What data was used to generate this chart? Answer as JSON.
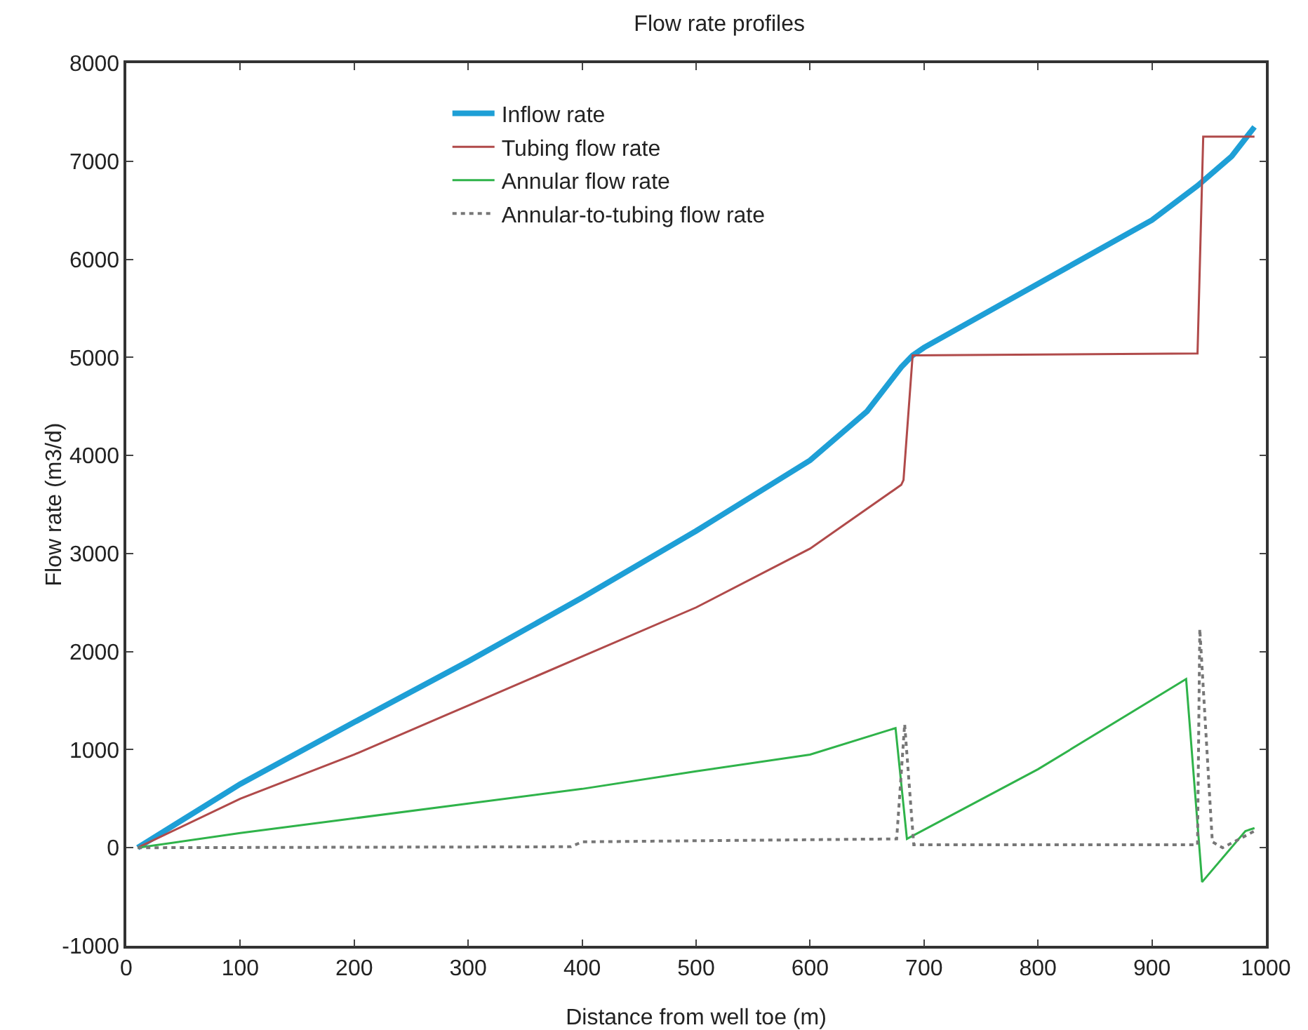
{
  "chart_data": {
    "type": "line",
    "title": "Flow rate profiles",
    "xlabel": "Distance from well toe (m)",
    "ylabel": "Flow rate (m3/d)",
    "xlim": [
      0,
      1000
    ],
    "xticks": [
      0,
      100,
      200,
      300,
      400,
      500,
      600,
      700,
      800,
      900,
      1000
    ],
    "ylim": [
      -1000,
      8000
    ],
    "yticks": [
      -1000,
      0,
      1000,
      2000,
      3000,
      4000,
      5000,
      6000,
      7000,
      8000
    ],
    "grid": false,
    "legend": "top",
    "marker": "none",
    "series": [
      {
        "name": "Inflow rate",
        "color": "#1e9fd6",
        "line_style": "solid",
        "x": [
          10,
          100,
          200,
          300,
          400,
          500,
          600,
          650,
          680,
          690,
          700,
          800,
          900,
          940,
          970,
          990
        ],
        "values": [
          0,
          650,
          1280,
          1900,
          2550,
          3230,
          3950,
          4450,
          4900,
          5020,
          5100,
          5750,
          6400,
          6750,
          7050,
          7350
        ]
      },
      {
        "name": "Tubing flow rate",
        "color": "#b04a4a",
        "line_style": "solid",
        "x": [
          10,
          100,
          200,
          300,
          400,
          500,
          600,
          680,
          682,
          690,
          940,
          945,
          990
        ],
        "values": [
          0,
          500,
          950,
          1450,
          1950,
          2450,
          3050,
          3700,
          3750,
          5020,
          5040,
          7250,
          7250
        ]
      },
      {
        "name": "Annular flow rate",
        "color": "#2fb34a",
        "line_style": "solid",
        "x": [
          10,
          100,
          200,
          300,
          400,
          500,
          600,
          675,
          685,
          800,
          930,
          944,
          982,
          990
        ],
        "values": [
          0,
          150,
          300,
          450,
          600,
          780,
          950,
          1220,
          90,
          800,
          1720,
          -350,
          170,
          200
        ]
      },
      {
        "name": "Annular-to-tubing flow rate",
        "color": "#777777",
        "line_style": "dotted",
        "x": [
          10,
          390,
          400,
          676,
          683,
          691,
          940,
          942,
          953,
          962,
          990
        ],
        "values": [
          0,
          10,
          60,
          90,
          1260,
          30,
          30,
          2230,
          60,
          0,
          170
        ]
      }
    ]
  }
}
